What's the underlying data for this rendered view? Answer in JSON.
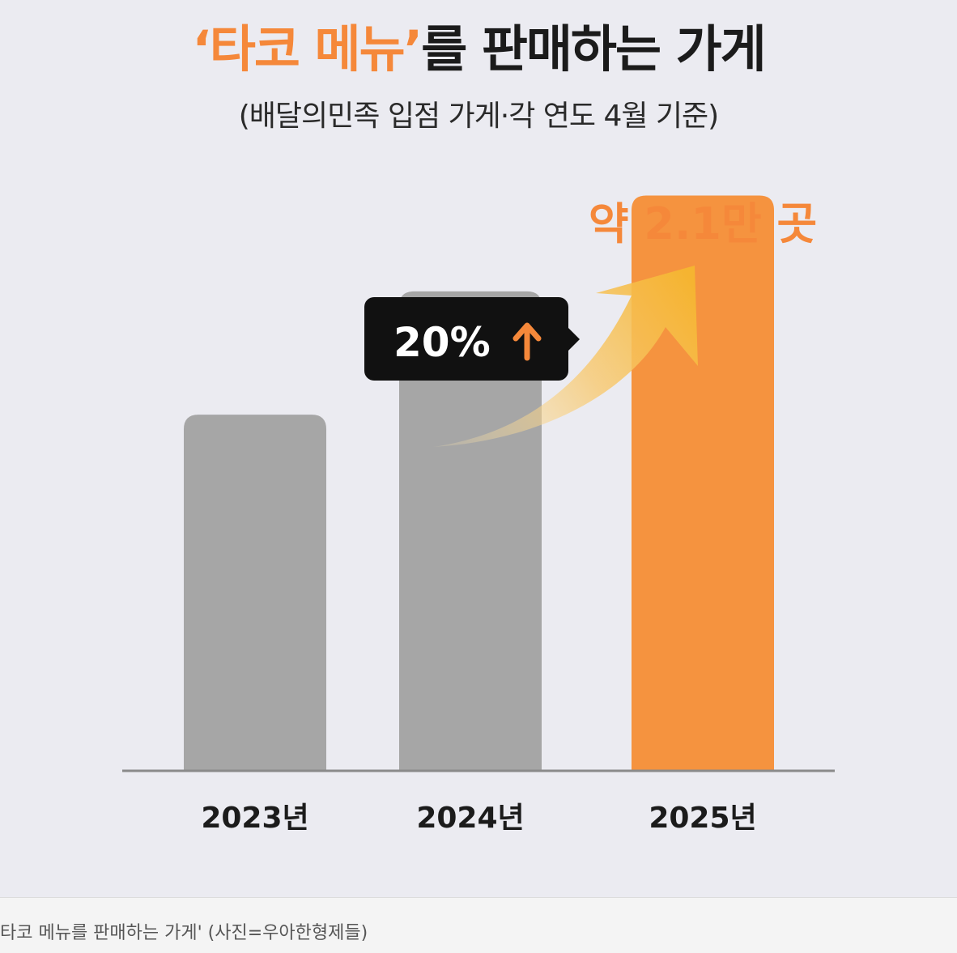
{
  "title": {
    "highlight": "‘타코 메뉴’",
    "rest": "를 판매하는 가게"
  },
  "subtitle": "(배달의민족 입점 가게·각 연도 4월 기준)",
  "caption": "타코 메뉴를 판매하는 가게' (사진=우아한형제들)",
  "colors": {
    "gray_bar": "#a6a6a6",
    "highlight_bar": "#f5933f",
    "accent_text": "#f5883a",
    "badge_bg": "#111111",
    "axis": "#8a8a8a"
  },
  "chart_data": {
    "type": "bar",
    "categories": [
      "2023년",
      "2024년",
      "2025년"
    ],
    "values": [
      13000,
      17500,
      21000
    ],
    "ylim": [
      0,
      24000
    ],
    "highlight_index": 2,
    "value_label": "약 2.1만 곳",
    "growth_label": "20%",
    "growth_icon": "arrow-up-icon",
    "grid": false
  }
}
